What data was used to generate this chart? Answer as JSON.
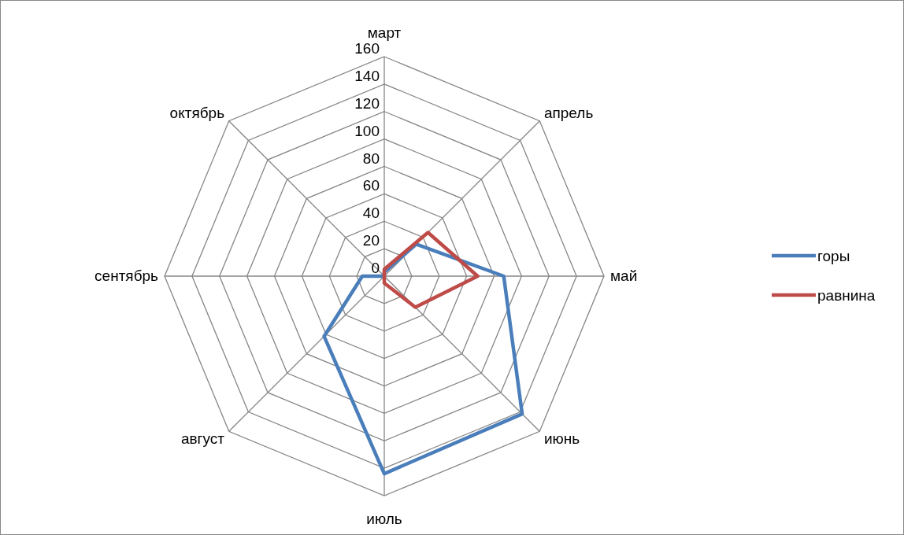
{
  "chart_data": {
    "type": "radar",
    "categories": [
      "март",
      "апрель",
      "май",
      "июнь",
      "июль",
      "август",
      "сентябрь",
      "октябрь"
    ],
    "series": [
      {
        "name": "горы",
        "color": "#4a7ebb",
        "values": [
          3,
          33,
          87,
          142,
          144,
          62,
          16,
          0
        ]
      },
      {
        "name": "равнина",
        "color": "#be4b48",
        "values": [
          5,
          45,
          68,
          32,
          5,
          0,
          0,
          0
        ]
      }
    ],
    "ylim": [
      0,
      160
    ],
    "yticks": [
      0,
      20,
      40,
      60,
      80,
      100,
      120,
      140,
      160
    ],
    "grid": true,
    "legend": "right"
  }
}
